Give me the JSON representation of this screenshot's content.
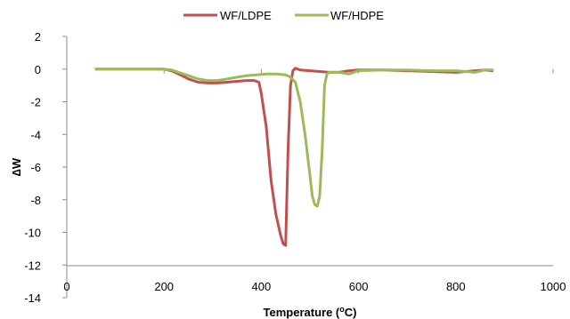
{
  "chart_data": {
    "type": "line",
    "title": "",
    "xlabel_main": "Temperature (",
    "xlabel_super": "o",
    "xlabel_tail": "C)",
    "ylabel": "∆W",
    "xlim": [
      0,
      1000
    ],
    "ylim": [
      -14,
      2
    ],
    "x_ticks": [
      0,
      200,
      400,
      600,
      800,
      1000
    ],
    "y_ticks": [
      2,
      0,
      -2,
      -4,
      -6,
      -8,
      -10,
      -12,
      -14
    ],
    "grid": false,
    "legend_position": "top-center",
    "series": [
      {
        "name": "WF/LDPE",
        "color": "#c0504d",
        "x": [
          60,
          100,
          150,
          200,
          215,
          230,
          250,
          270,
          290,
          310,
          330,
          350,
          370,
          385,
          395,
          400,
          405,
          410,
          420,
          430,
          440,
          445,
          450,
          455,
          460,
          465,
          470,
          480,
          500,
          520,
          540,
          560,
          580,
          600,
          650,
          700,
          750,
          800,
          820,
          840,
          860,
          875
        ],
        "y": [
          0,
          0,
          0,
          0,
          -0.1,
          -0.3,
          -0.6,
          -0.8,
          -0.85,
          -0.85,
          -0.8,
          -0.75,
          -0.7,
          -0.7,
          -0.8,
          -1.5,
          -2.5,
          -3.5,
          -6.8,
          -8.9,
          -10.2,
          -10.7,
          -10.8,
          -5.0,
          -1.0,
          -0.1,
          0.05,
          -0.05,
          -0.1,
          -0.15,
          -0.2,
          -0.2,
          -0.1,
          -0.05,
          -0.05,
          -0.1,
          -0.15,
          -0.2,
          -0.15,
          -0.1,
          -0.05,
          -0.1
        ]
      },
      {
        "name": "WF/HDPE",
        "color": "#9bbb59",
        "x": [
          60,
          100,
          150,
          200,
          215,
          230,
          250,
          270,
          290,
          310,
          330,
          350,
          370,
          390,
          410,
          430,
          450,
          460,
          470,
          480,
          490,
          500,
          505,
          510,
          515,
          520,
          525,
          530,
          535,
          540,
          560,
          580,
          600,
          650,
          700,
          750,
          800,
          840,
          860,
          875
        ],
        "y": [
          0,
          0,
          0,
          0,
          -0.05,
          -0.2,
          -0.4,
          -0.6,
          -0.7,
          -0.7,
          -0.6,
          -0.5,
          -0.4,
          -0.35,
          -0.3,
          -0.3,
          -0.35,
          -0.5,
          -0.8,
          -2.0,
          -4.0,
          -6.5,
          -7.8,
          -8.3,
          -8.4,
          -7.8,
          -5.0,
          -1.0,
          -0.3,
          -0.2,
          -0.2,
          -0.3,
          -0.1,
          -0.05,
          -0.05,
          -0.1,
          -0.1,
          -0.2,
          -0.05,
          -0.05
        ]
      }
    ]
  }
}
